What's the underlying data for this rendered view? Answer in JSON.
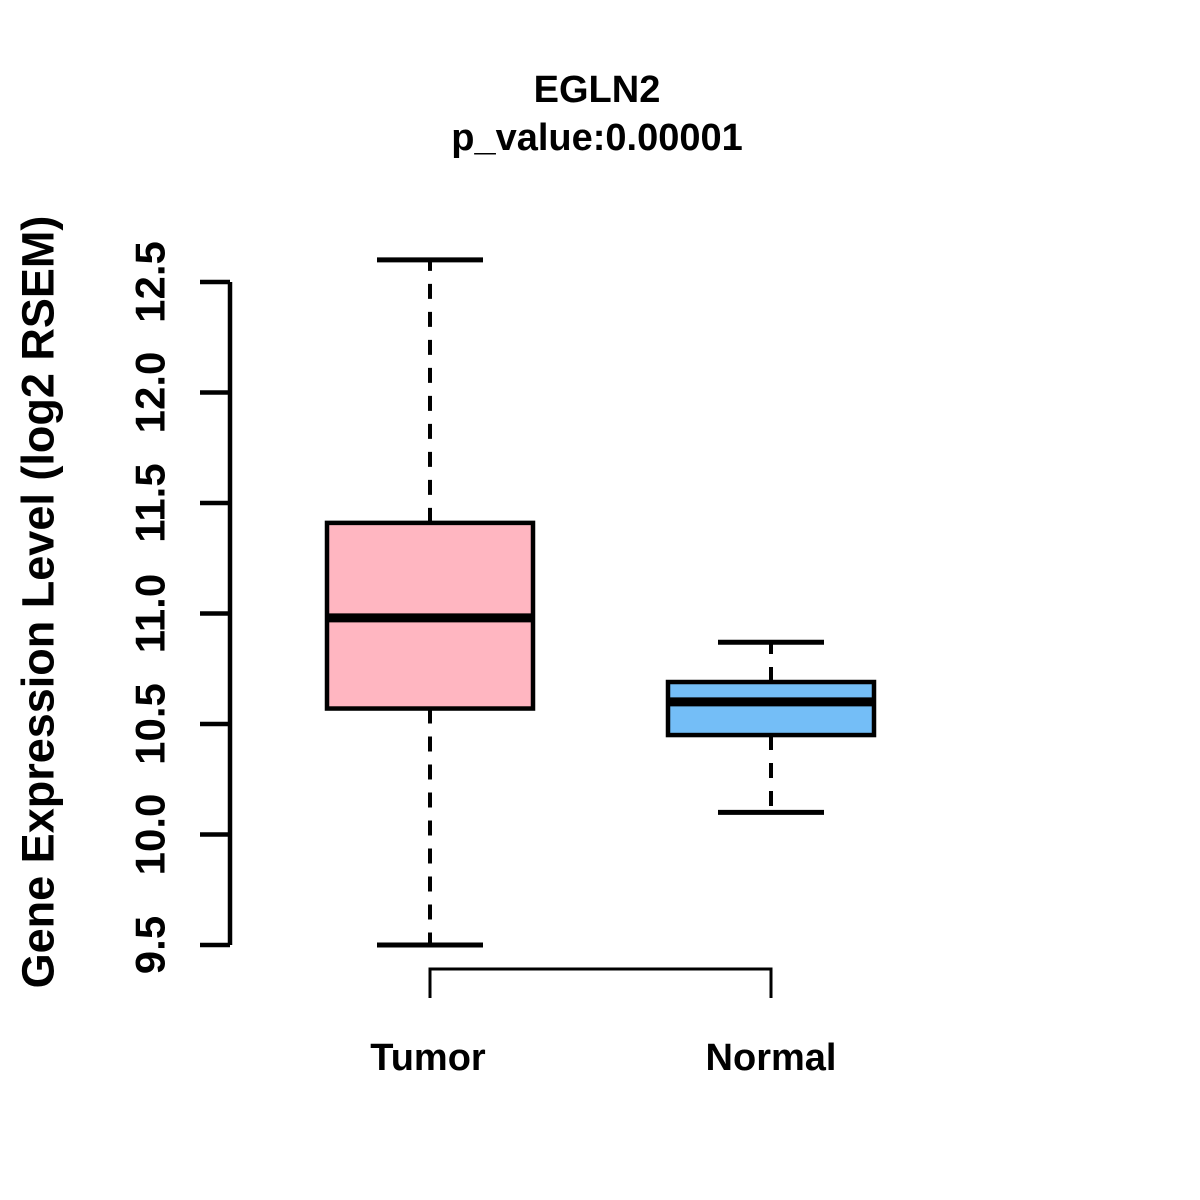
{
  "chart_data": {
    "type": "boxplot",
    "title": "EGLN2",
    "subtitle": "p_value:0.00001",
    "ylabel": "Gene Expression Level (log2 RSEM)",
    "xlabel": "",
    "categories": [
      "Tumor",
      "Normal"
    ],
    "ylim": [
      9.5,
      12.5
    ],
    "ytick_labels": [
      "9.5",
      "10.0",
      "10.5",
      "11.0",
      "11.5",
      "12.0",
      "12.5"
    ],
    "grid": false,
    "legend": null,
    "whisker_line_style": "dashed",
    "series": [
      {
        "name": "Tumor",
        "whisker_low": 9.5,
        "q1": 10.57,
        "median": 10.98,
        "q3": 11.41,
        "whisker_high": 12.6,
        "outliers": [],
        "fill": "#FFB6C1"
      },
      {
        "name": "Normal",
        "whisker_low": 10.1,
        "q1": 10.45,
        "median": 10.6,
        "q3": 10.69,
        "whisker_high": 10.87,
        "outliers": [],
        "fill": "#74BEF7"
      }
    ],
    "colors": {
      "stroke": "#000000",
      "background": "#FFFFFF",
      "tumor_fill": "#FFB6C1",
      "normal_fill": "#74BEF7"
    }
  }
}
